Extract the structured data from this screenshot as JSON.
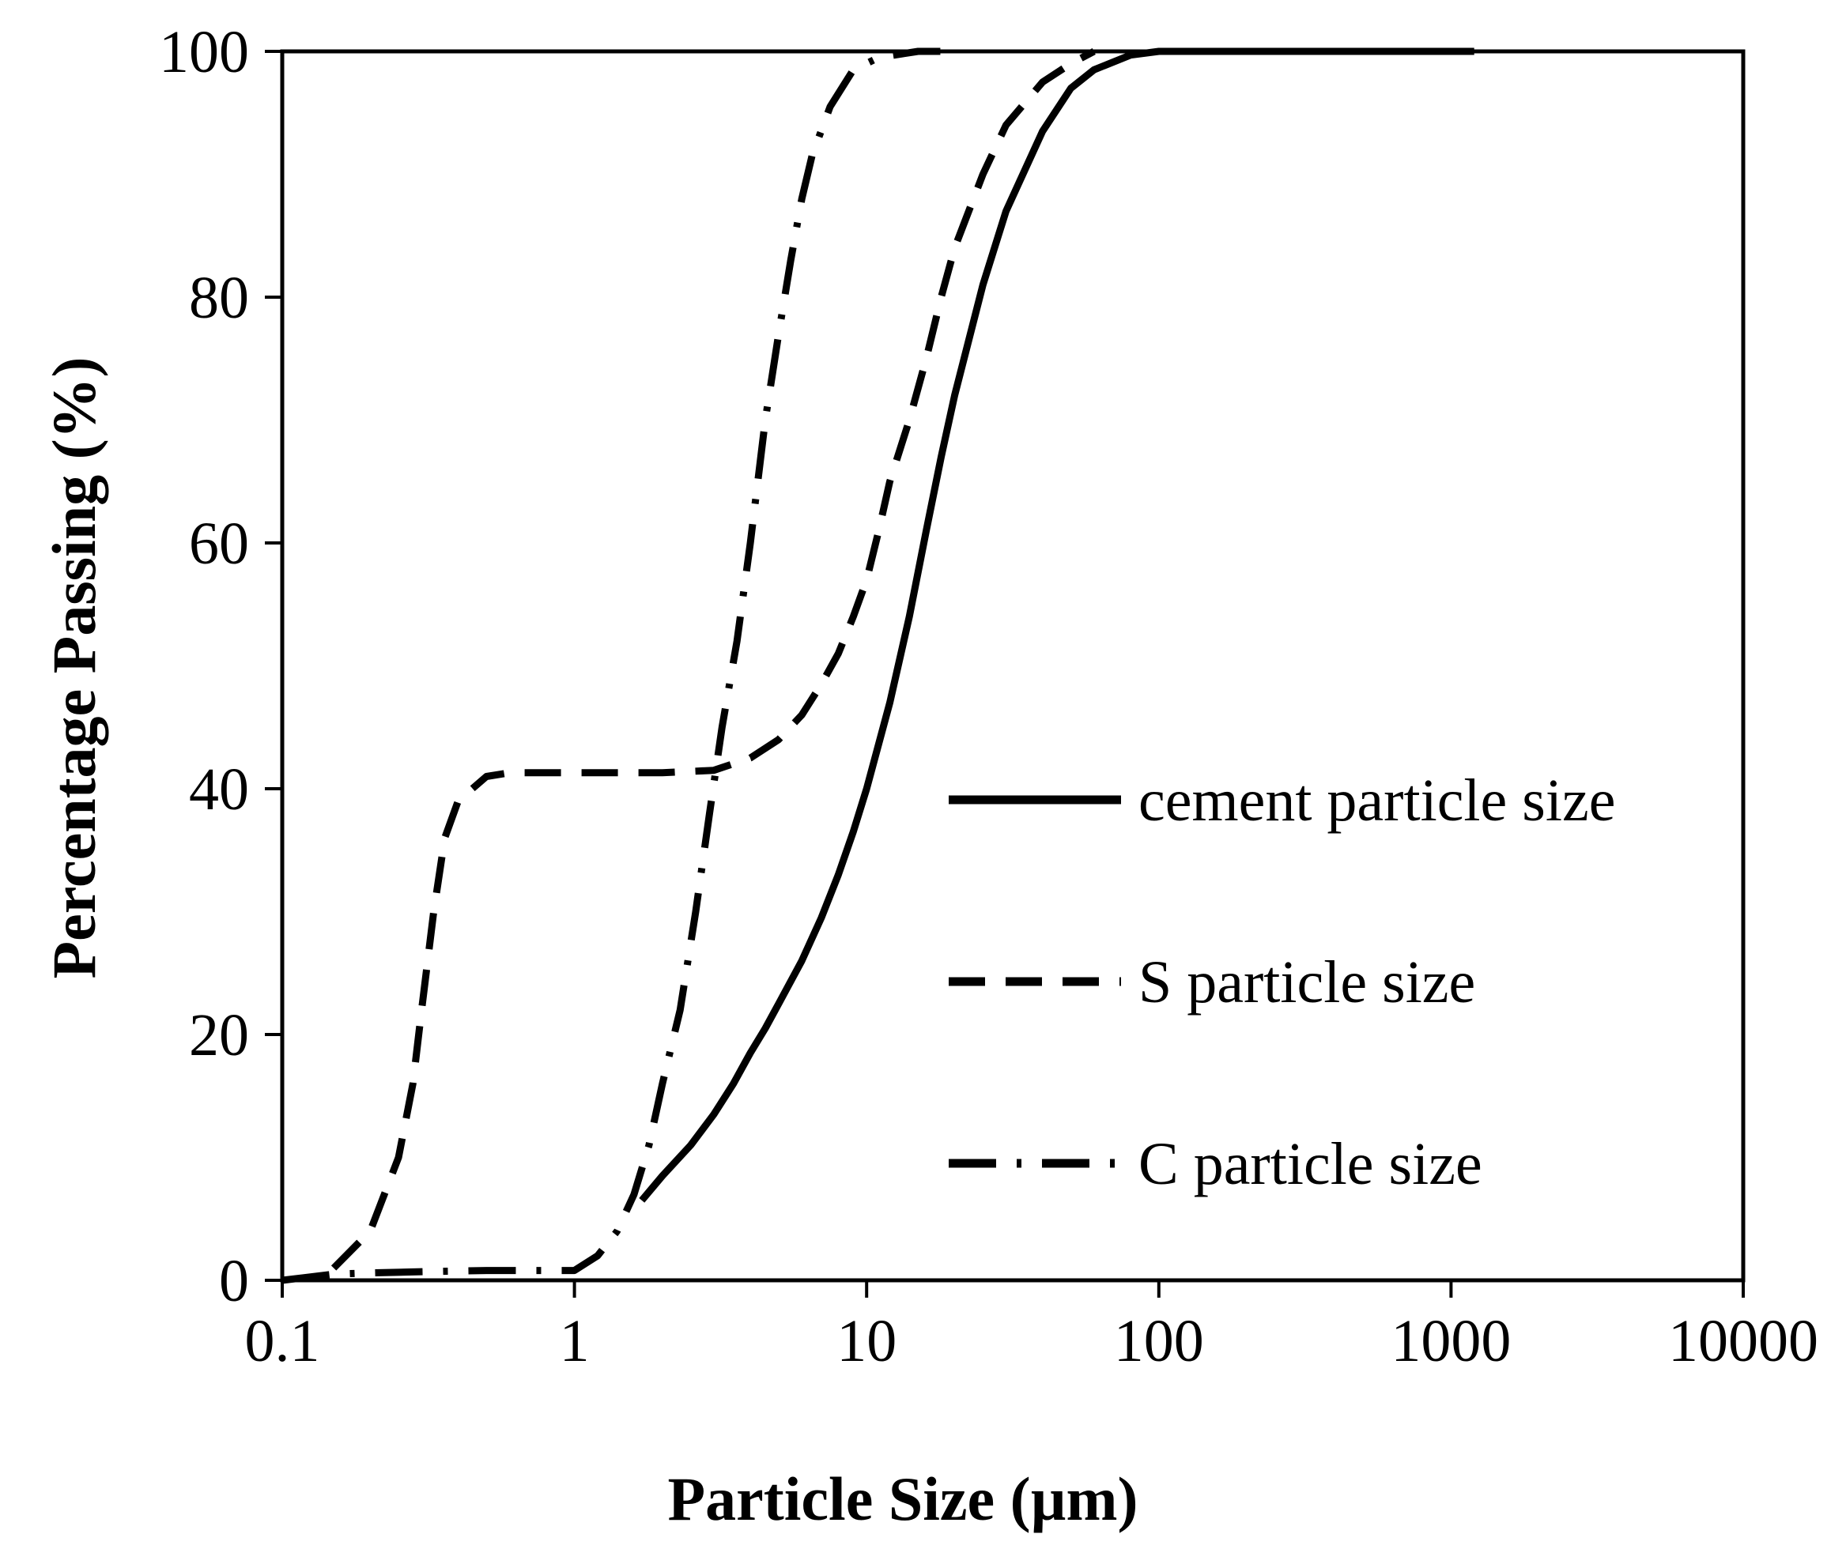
{
  "chart_data": {
    "type": "line",
    "title": "",
    "xlabel": "Particle Size (µm)",
    "ylabel": "Percentage Passing (%)",
    "xscale": "log",
    "xlim": [
      0.1,
      10000
    ],
    "ylim": [
      0,
      100
    ],
    "x_ticks": [
      "0.1",
      "1",
      "10",
      "100",
      "1000",
      "10000"
    ],
    "y_ticks": [
      "0",
      "20",
      "40",
      "60",
      "80",
      "100"
    ],
    "grid": false,
    "legend_position": "right-center",
    "series": [
      {
        "name": "cement particle size",
        "line_style": "solid",
        "color": "#000000",
        "points": [
          [
            1.7,
            6.5
          ],
          [
            2.0,
            8.5
          ],
          [
            2.5,
            11
          ],
          [
            3.0,
            13.5
          ],
          [
            3.5,
            16
          ],
          [
            4.0,
            18.5
          ],
          [
            4.5,
            20.5
          ],
          [
            5.0,
            22.5
          ],
          [
            6.0,
            26
          ],
          [
            7.0,
            29.5
          ],
          [
            8.0,
            33
          ],
          [
            9.0,
            36.5
          ],
          [
            10,
            40
          ],
          [
            12,
            47
          ],
          [
            14,
            54
          ],
          [
            16,
            61
          ],
          [
            18,
            67
          ],
          [
            20,
            72
          ],
          [
            25,
            81
          ],
          [
            30,
            87
          ],
          [
            40,
            93.5
          ],
          [
            50,
            97
          ],
          [
            60,
            98.5
          ],
          [
            80,
            99.7
          ],
          [
            100,
            100
          ],
          [
            1200,
            100
          ]
        ]
      },
      {
        "name": "S particle size",
        "line_style": "dashed",
        "color": "#000000",
        "points": [
          [
            0.15,
            1
          ],
          [
            0.2,
            4
          ],
          [
            0.25,
            10
          ],
          [
            0.28,
            16
          ],
          [
            0.3,
            22
          ],
          [
            0.33,
            30
          ],
          [
            0.36,
            36
          ],
          [
            0.4,
            39
          ],
          [
            0.5,
            41
          ],
          [
            0.6,
            41.3
          ],
          [
            1,
            41.3
          ],
          [
            2,
            41.3
          ],
          [
            3,
            41.5
          ],
          [
            4,
            42.5
          ],
          [
            5,
            44
          ],
          [
            6,
            46
          ],
          [
            7,
            48.5
          ],
          [
            8,
            51
          ],
          [
            9,
            54
          ],
          [
            10,
            57
          ],
          [
            11,
            61
          ],
          [
            12,
            65
          ],
          [
            14,
            70
          ],
          [
            16,
            75
          ],
          [
            18,
            80
          ],
          [
            20,
            84
          ],
          [
            25,
            90
          ],
          [
            30,
            94
          ],
          [
            40,
            97.5
          ],
          [
            50,
            99
          ],
          [
            60,
            100
          ]
        ]
      },
      {
        "name": "C particle size",
        "line_style": "dash-dot",
        "color": "#000000",
        "points": [
          [
            0.1,
            0
          ],
          [
            0.15,
            0.5
          ],
          [
            0.2,
            0.6
          ],
          [
            0.3,
            0.7
          ],
          [
            0.5,
            0.8
          ],
          [
            1.0,
            0.8
          ],
          [
            1.2,
            2
          ],
          [
            1.4,
            4
          ],
          [
            1.6,
            7
          ],
          [
            1.8,
            11
          ],
          [
            2.0,
            16
          ],
          [
            2.3,
            22
          ],
          [
            2.6,
            30
          ],
          [
            2.9,
            38
          ],
          [
            3.2,
            45
          ],
          [
            3.6,
            52
          ],
          [
            4.0,
            60
          ],
          [
            4.5,
            70
          ],
          [
            5.0,
            77
          ],
          [
            5.5,
            83
          ],
          [
            6.0,
            88
          ],
          [
            6.5,
            91.5
          ],
          [
            7.5,
            95.5
          ],
          [
            9.0,
            98.5
          ],
          [
            11,
            99.5
          ],
          [
            15,
            100
          ],
          [
            20,
            100
          ]
        ]
      }
    ]
  }
}
